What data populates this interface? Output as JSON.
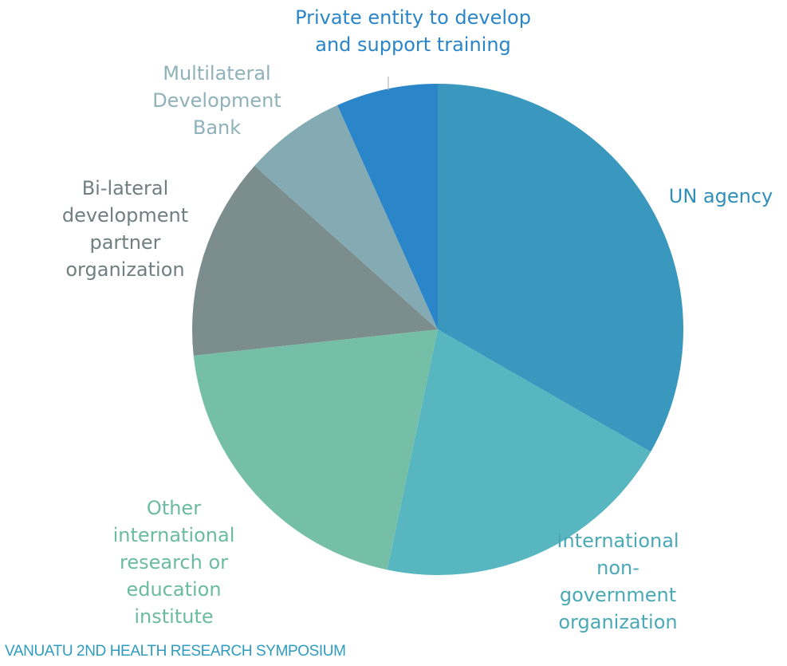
{
  "footer": {
    "text": "VANUATU 2ND HEALTH RESEARCH SYMPOSIUM",
    "color": "#2e9bbf"
  },
  "chart_data": {
    "type": "pie",
    "start_angle_deg": 0,
    "direction": "clockwise",
    "legend": "none",
    "slices": [
      {
        "label": "UN agency",
        "value": 33.3,
        "color": "#3a97bd",
        "label_lines": [
          "UN agency"
        ],
        "label_color": "#2f8fb8"
      },
      {
        "label": "International non-government organization",
        "value": 20.0,
        "color": "#57b6c0",
        "label_lines": [
          "International",
          "non-",
          "government",
          "organization"
        ],
        "label_color": "#4aa9b6"
      },
      {
        "label": "Other international research or education institute",
        "value": 20.0,
        "color": "#76bfa7",
        "label_lines": [
          "Other",
          "international",
          "research or",
          "education",
          "institute"
        ],
        "label_color": "#6bbba1"
      },
      {
        "label": "Bi-lateral development partner organization",
        "value": 13.3,
        "color": "#7b8d8d",
        "label_lines": [
          "Bi-lateral",
          "development",
          "partner",
          "organization"
        ],
        "label_color": "#6f7f80"
      },
      {
        "label": "Multilateral Development Bank",
        "value": 6.7,
        "color": "#84aab3",
        "label_lines": [
          "Multilateral",
          "Development",
          "Bank"
        ],
        "label_color": "#8fb1b9"
      },
      {
        "label": "Private entity to develop and support training",
        "value": 6.7,
        "color": "#2a85c9",
        "label_lines": [
          "Private entity to develop",
          "and support training"
        ],
        "label_color": "#2a85c9"
      }
    ]
  }
}
